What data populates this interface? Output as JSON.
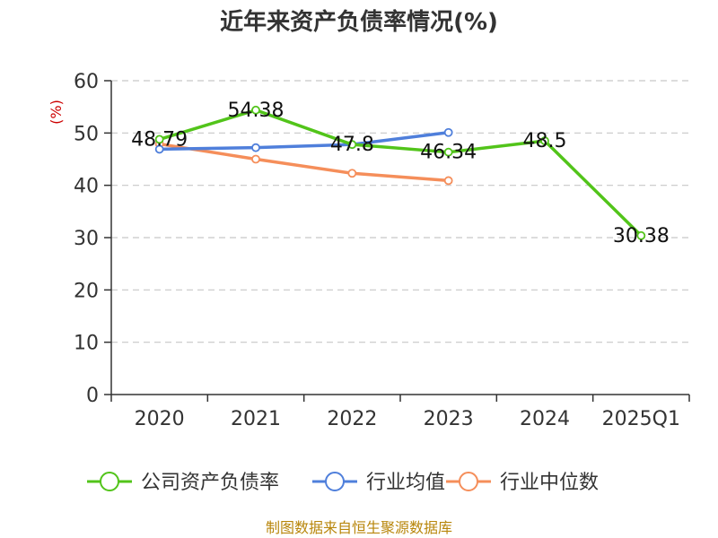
{
  "chart_data": {
    "type": "line",
    "title": "近年来资产负债率情况(%)",
    "y_unit": "(%)",
    "categories": [
      "2020",
      "2021",
      "2022",
      "2023",
      "2024",
      "2025Q1"
    ],
    "ylim": [
      0,
      60
    ],
    "yticks": [
      0,
      10,
      20,
      30,
      40,
      50,
      60
    ],
    "grid": true,
    "legend_position": "bottom",
    "series": [
      {
        "name": "公司资产负债率",
        "color": "#52c41a",
        "values": [
          48.79,
          54.38,
          47.8,
          46.34,
          48.5,
          30.38
        ],
        "labels": [
          "48.79",
          "54.38",
          "47.8",
          "46.34",
          "48.5",
          "30.38"
        ]
      },
      {
        "name": "行业均值",
        "color": "#4f7fdb",
        "values": [
          46.9,
          47.2,
          47.8,
          50.1,
          null,
          null
        ]
      },
      {
        "name": "行业中位数",
        "color": "#f58e5a",
        "values": [
          47.9,
          45.0,
          42.3,
          40.9,
          null,
          null
        ]
      }
    ],
    "source": "制图数据来自恒生聚源数据库"
  }
}
